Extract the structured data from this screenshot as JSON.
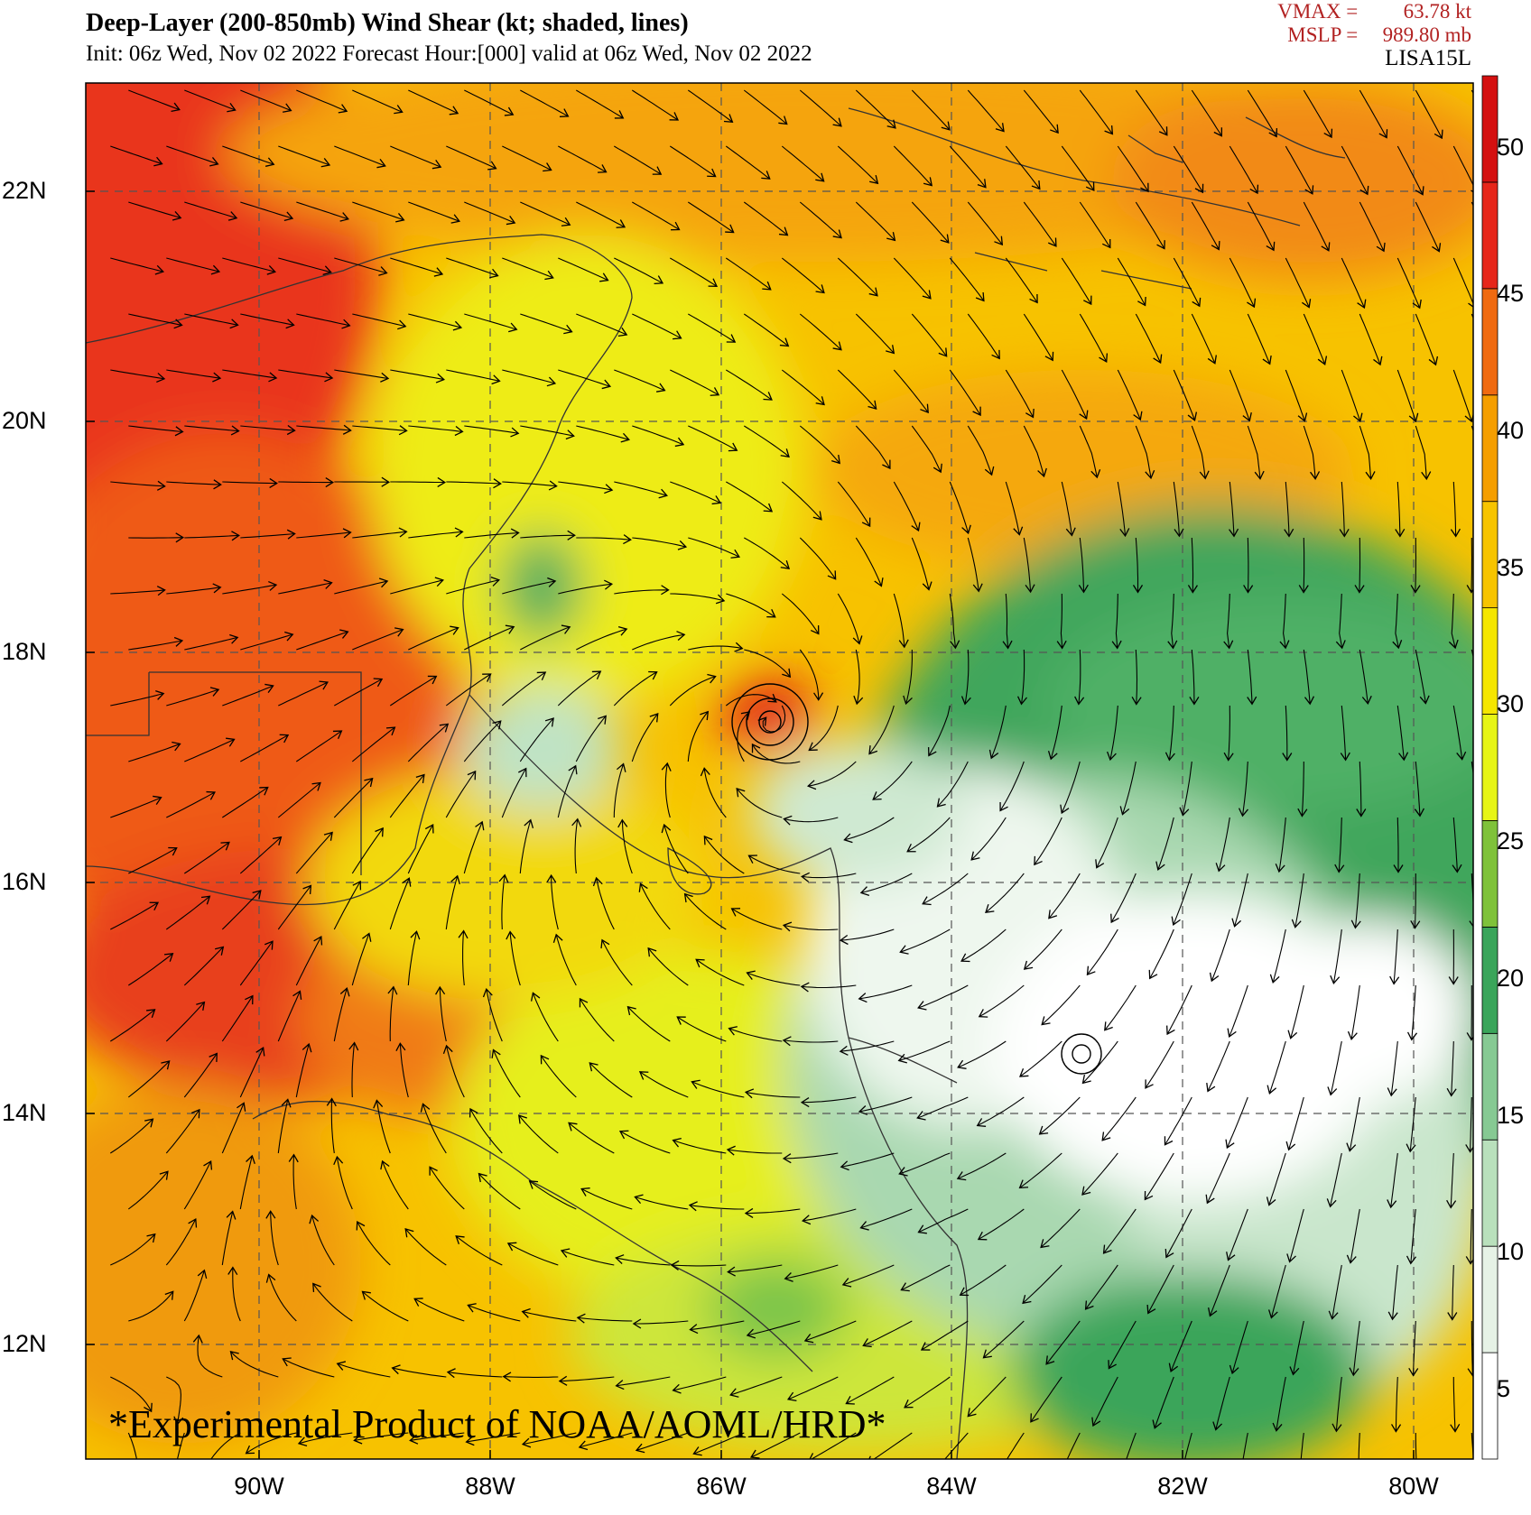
{
  "header": {
    "title": "Deep-Layer (200-850mb) Wind Shear (kt; shaded, lines)",
    "subtitle": "Init: 06z Wed, Nov 02 2022  Forecast Hour:[000]  valid at 06z Wed, Nov 02 2022",
    "vmax_label": "VMAX =",
    "vmax_value": "63.78 kt",
    "mslp_label": "MSLP =",
    "mslp_value": "989.80 mb",
    "storm_id": "LISA15L"
  },
  "axes": {
    "lat_labels": [
      "22N",
      "20N",
      "18N",
      "16N",
      "14N",
      "12N"
    ],
    "lon_labels": [
      "90W",
      "88W",
      "86W",
      "84W",
      "82W",
      "80W"
    ],
    "lat_range": [
      11.0,
      23.0
    ],
    "lon_range": [
      -91.5,
      -79.5
    ]
  },
  "colorbar": {
    "ticks": [
      "5",
      "10",
      "15",
      "20",
      "25",
      "30",
      "35",
      "40",
      "45",
      "50"
    ],
    "levels": [
      0,
      5,
      10,
      15,
      20,
      25,
      30,
      35,
      40,
      45,
      50,
      55
    ],
    "colors": [
      "#ffffff",
      "#e6f2e6",
      "#b9e0bc",
      "#86c993",
      "#3aa55a",
      "#7fc23a",
      "#e7f516",
      "#f5e600",
      "#f7c400",
      "#f59e00",
      "#f06a10",
      "#e6261a",
      "#d41010"
    ]
  },
  "storm_center": {
    "lat": 17.0,
    "lon": -85.5
  },
  "credit": "*Experimental Product of NOAA/AOML/HRD*"
}
